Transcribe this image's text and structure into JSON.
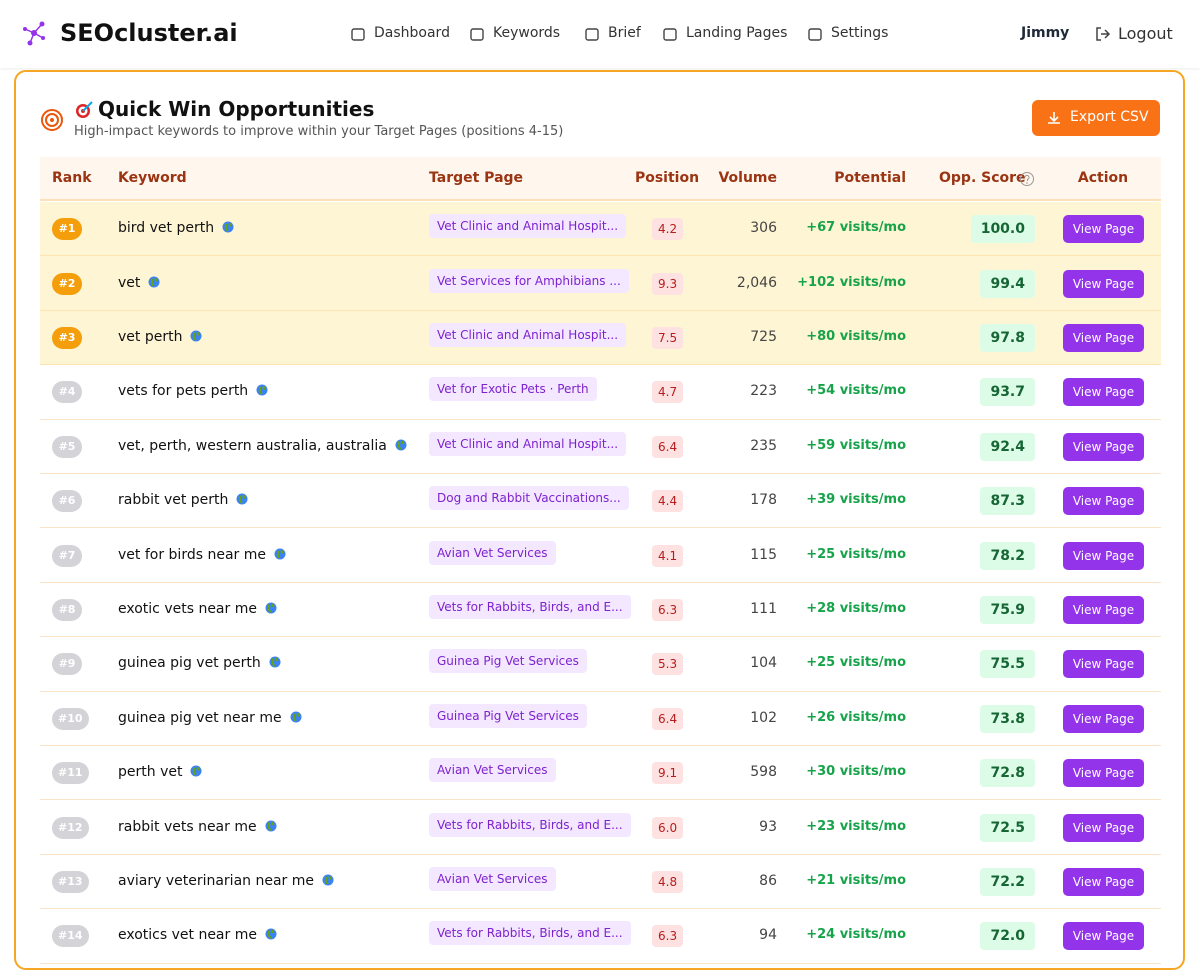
{
  "header": {
    "logo": "SEOcluster.ai",
    "nav": [
      "Dashboard",
      "Keywords",
      "Brief",
      "Landing Pages",
      "Settings"
    ],
    "user": "Jimmy",
    "logout": "Logout"
  },
  "panel": {
    "title": "Quick Win Opportunities",
    "subtitle": "High-impact keywords to improve within your Target Pages (positions 4-15)",
    "export": "Export CSV"
  },
  "table": {
    "columns": [
      "Rank",
      "Keyword",
      "Target Page",
      "Position",
      "Volume",
      "Potential",
      "Opp. Score",
      "Action"
    ],
    "rows": [
      [
        "#1",
        "bird vet perth",
        "Vet Clinic and Animal Hospit...",
        "4.2",
        "306",
        "+67 visits/mo",
        "100.0",
        "View Page"
      ],
      [
        "#2",
        "vet",
        "Vet Services for Amphibians ...",
        "9.3",
        "2,046",
        "+102 visits/mo",
        "99.4",
        "View Page"
      ],
      [
        "#3",
        "vet perth",
        "Vet Clinic and Animal Hospit...",
        "7.5",
        "725",
        "+80 visits/mo",
        "97.8",
        "View Page"
      ],
      [
        "#4",
        "vets for pets perth",
        "Vet for Exotic Pets · Perth",
        "4.7",
        "223",
        "+54 visits/mo",
        "93.7",
        "View Page"
      ],
      [
        "#5",
        "vet, perth, western australia, australia",
        "Vet Clinic and Animal Hospit...",
        "6.4",
        "235",
        "+59 visits/mo",
        "92.4",
        "View Page"
      ],
      [
        "#6",
        "rabbit vet perth",
        "Dog and Rabbit Vaccinations...",
        "4.4",
        "178",
        "+39 visits/mo",
        "87.3",
        "View Page"
      ],
      [
        "#7",
        "vet for birds near me",
        "Avian Vet Services",
        "4.1",
        "115",
        "+25 visits/mo",
        "78.2",
        "View Page"
      ],
      [
        "#8",
        "exotic vets near me",
        "Vets for Rabbits, Birds, and E...",
        "6.3",
        "111",
        "+28 visits/mo",
        "75.9",
        "View Page"
      ],
      [
        "#9",
        "guinea pig vet perth",
        "Guinea Pig Vet Services",
        "5.3",
        "104",
        "+25 visits/mo",
        "75.5",
        "View Page"
      ],
      [
        "#10",
        "guinea pig vet near me",
        "Guinea Pig Vet Services",
        "6.4",
        "102",
        "+26 visits/mo",
        "73.8",
        "View Page"
      ],
      [
        "#11",
        "perth vet",
        "Avian Vet Services",
        "9.1",
        "598",
        "+30 visits/mo",
        "72.8",
        "View Page"
      ],
      [
        "#12",
        "rabbit vets near me",
        "Vets for Rabbits, Birds, and E...",
        "6.0",
        "93",
        "+23 visits/mo",
        "72.5",
        "View Page"
      ],
      [
        "#13",
        "aviary veterinarian near me",
        "Avian Vet Services",
        "4.8",
        "86",
        "+21 visits/mo",
        "72.2",
        "View Page"
      ],
      [
        "#14",
        "exotics vet near me",
        "Vets for Rabbits, Birds, and E...",
        "6.3",
        "94",
        "+24 visits/mo",
        "72.0",
        "View Page"
      ]
    ]
  }
}
